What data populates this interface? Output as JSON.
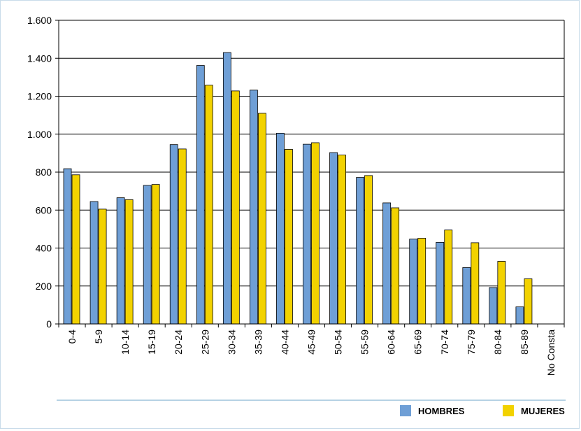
{
  "chart_data": {
    "type": "bar",
    "title": "",
    "xlabel": "",
    "ylabel": "",
    "categories": [
      "0-4",
      "5-9",
      "10-14",
      "15-19",
      "20-24",
      "25-29",
      "30-34",
      "35-39",
      "40-44",
      "45-49",
      "50-54",
      "55-59",
      "60-64",
      "65-69",
      "70-74",
      "75-79",
      "80-84",
      "85-89",
      "No Consta"
    ],
    "series": [
      {
        "name": "HOMBRES",
        "color": "#6f9fd6",
        "values": [
          818,
          645,
          665,
          730,
          945,
          1362,
          1430,
          1232,
          1005,
          947,
          903,
          772,
          638,
          447,
          430,
          297,
          192,
          90,
          0
        ]
      },
      {
        "name": "MUJERES",
        "color": "#f2d200",
        "values": [
          786,
          605,
          655,
          735,
          922,
          1258,
          1228,
          1110,
          920,
          955,
          890,
          782,
          612,
          452,
          495,
          428,
          330,
          238,
          0
        ]
      }
    ],
    "ylim": [
      0,
      1600
    ],
    "yticks": [
      0,
      200,
      400,
      600,
      800,
      1000,
      1200,
      1400,
      1600
    ],
    "ytick_labels": [
      "0",
      "200",
      "400",
      "600",
      "800",
      "1.000",
      "1.200",
      "1.400",
      "1.600"
    ],
    "grid": true,
    "legend_position": "bottom-right"
  }
}
